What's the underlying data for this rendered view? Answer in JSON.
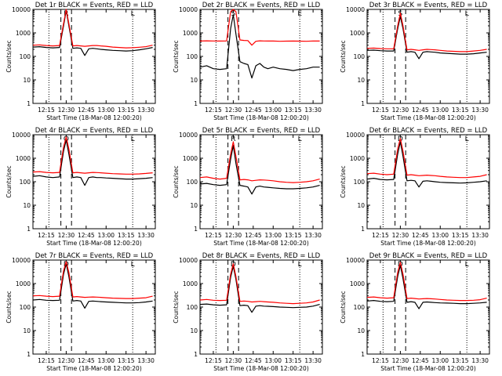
{
  "common": {
    "ylabel": "Counts/sec",
    "xlabel": "Start Time (18-Mar-08 12:00:20)",
    "xticks": [
      "12:15",
      "12:30",
      "12:45",
      "13:00",
      "13:15",
      "13:30"
    ],
    "yticks": [
      "1",
      "10",
      "100",
      "1000",
      "10000"
    ]
  },
  "colors": {
    "events": "#000000",
    "lld": "#ff0000",
    "axes": "#000000"
  },
  "chart_data": [
    {
      "type": "line",
      "title": "Det 1r BLACK = Events, RED = LLD",
      "scale": "log",
      "x": [
        "12:05",
        "12:10",
        "12:15",
        "12:20",
        "12:25",
        "12:28",
        "12:30",
        "12:32",
        "12:35",
        "12:38",
        "12:41",
        "12:44",
        "12:47",
        "12:50",
        "12:53",
        "12:56",
        "13:00",
        "13:05",
        "13:10",
        "13:15",
        "13:20",
        "13:25",
        "13:30",
        "13:35"
      ],
      "series": [
        {
          "name": "Events",
          "values": [
            250,
            260,
            240,
            230,
            240,
            2000,
            9000,
            2000,
            220,
            230,
            220,
            110,
            210,
            220,
            210,
            200,
            190,
            180,
            175,
            170,
            175,
            190,
            210,
            240
          ]
        },
        {
          "name": "LLD",
          "values": [
            300,
            310,
            290,
            280,
            290,
            2500,
            10000,
            2500,
            280,
            290,
            280,
            270,
            280,
            290,
            290,
            280,
            270,
            250,
            240,
            230,
            235,
            245,
            260,
            300
          ]
        }
      ],
      "ylim": [
        1,
        10000
      ],
      "letters": [
        "R",
        "L"
      ]
    },
    {
      "type": "line",
      "title": "Det 2r BLACK = Events, RED = LLD",
      "scale": "log",
      "x": [
        "12:05",
        "12:10",
        "12:15",
        "12:20",
        "12:25",
        "12:28",
        "12:30",
        "12:32",
        "12:35",
        "12:38",
        "12:41",
        "12:44",
        "12:47",
        "12:50",
        "12:53",
        "12:56",
        "13:00",
        "13:05",
        "13:10",
        "13:15",
        "13:20",
        "13:25",
        "13:30",
        "13:35"
      ],
      "series": [
        {
          "name": "Events",
          "values": [
            35,
            40,
            30,
            28,
            30,
            1500,
            6000,
            900,
            60,
            50,
            45,
            12,
            40,
            50,
            35,
            30,
            35,
            30,
            28,
            25,
            28,
            30,
            35,
            35
          ]
        },
        {
          "name": "LLD",
          "values": [
            450,
            460,
            455,
            450,
            455,
            8000,
            10000,
            8000,
            500,
            480,
            470,
            300,
            440,
            460,
            455,
            450,
            450,
            440,
            445,
            450,
            445,
            440,
            455,
            450
          ]
        }
      ],
      "ylim": [
        1,
        10000
      ],
      "letters": [
        "S",
        "E"
      ]
    },
    {
      "type": "line",
      "title": "Det 3r BLACK = Events, RED = LLD",
      "scale": "log",
      "x": [
        "12:05",
        "12:10",
        "12:15",
        "12:20",
        "12:25",
        "12:28",
        "12:30",
        "12:32",
        "12:35",
        "12:38",
        "12:41",
        "12:44",
        "12:47",
        "12:50",
        "12:53",
        "12:56",
        "13:00",
        "13:05",
        "13:10",
        "13:15",
        "13:20",
        "13:25",
        "13:30",
        "13:35"
      ],
      "series": [
        {
          "name": "Events",
          "values": [
            180,
            185,
            175,
            170,
            170,
            1500,
            5000,
            1500,
            150,
            160,
            150,
            80,
            150,
            160,
            155,
            150,
            140,
            135,
            130,
            125,
            125,
            130,
            140,
            150
          ]
        },
        {
          "name": "LLD",
          "values": [
            220,
            225,
            215,
            210,
            210,
            2000,
            7000,
            2000,
            190,
            200,
            190,
            180,
            190,
            200,
            195,
            190,
            180,
            170,
            165,
            160,
            160,
            170,
            180,
            200
          ]
        }
      ],
      "ylim": [
        1,
        10000
      ],
      "letters": [
        "S",
        "L"
      ]
    },
    {
      "type": "line",
      "title": "Det 4r BLACK = Events, RED = LLD",
      "scale": "log",
      "x": [
        "12:05",
        "12:10",
        "12:15",
        "12:20",
        "12:25",
        "12:28",
        "12:30",
        "12:32",
        "12:35",
        "12:38",
        "12:41",
        "12:44",
        "12:47",
        "12:50",
        "12:53",
        "12:56",
        "13:00",
        "13:05",
        "13:10",
        "13:15",
        "13:20",
        "13:25",
        "13:30",
        "13:35"
      ],
      "series": [
        {
          "name": "Events",
          "values": [
            170,
            180,
            160,
            150,
            160,
            2000,
            6000,
            1500,
            150,
            160,
            150,
            70,
            150,
            160,
            150,
            150,
            145,
            140,
            135,
            130,
            130,
            135,
            140,
            150
          ]
        },
        {
          "name": "LLD",
          "values": [
            260,
            270,
            250,
            240,
            250,
            3000,
            8000,
            2500,
            240,
            250,
            240,
            230,
            240,
            250,
            245,
            240,
            230,
            220,
            215,
            210,
            210,
            215,
            225,
            240
          ]
        }
      ],
      "ylim": [
        1,
        10000
      ],
      "letters": [
        "O",
        "L"
      ]
    },
    {
      "type": "line",
      "title": "Det 5r BLACK = Events, RED = LLD",
      "scale": "log",
      "x": [
        "12:05",
        "12:10",
        "12:15",
        "12:20",
        "12:25",
        "12:28",
        "12:30",
        "12:32",
        "12:35",
        "12:38",
        "12:41",
        "12:44",
        "12:47",
        "12:50",
        "12:53",
        "12:56",
        "13:00",
        "13:05",
        "13:10",
        "13:15",
        "13:20",
        "13:25",
        "13:30",
        "13:35"
      ],
      "series": [
        {
          "name": "Events",
          "values": [
            80,
            85,
            75,
            70,
            75,
            900,
            3500,
            600,
            70,
            65,
            60,
            30,
            60,
            65,
            60,
            58,
            55,
            52,
            50,
            50,
            52,
            55,
            60,
            70
          ]
        },
        {
          "name": "LLD",
          "values": [
            150,
            160,
            140,
            130,
            140,
            1500,
            5000,
            1200,
            120,
            125,
            120,
            110,
            115,
            120,
            118,
            115,
            110,
            100,
            95,
            92,
            95,
            100,
            110,
            130
          ]
        }
      ],
      "ylim": [
        1,
        10000
      ],
      "letters": [
        "R",
        "L"
      ]
    },
    {
      "type": "line",
      "title": "Det 6r BLACK = Events, RED = LLD",
      "scale": "log",
      "x": [
        "12:05",
        "12:10",
        "12:15",
        "12:20",
        "12:25",
        "12:28",
        "12:30",
        "12:32",
        "12:35",
        "12:38",
        "12:41",
        "12:44",
        "12:47",
        "12:50",
        "12:53",
        "12:56",
        "13:00",
        "13:05",
        "13:10",
        "13:15",
        "13:20",
        "13:25",
        "13:30",
        "13:35"
      ],
      "series": [
        {
          "name": "Events",
          "values": [
            130,
            140,
            125,
            120,
            125,
            1500,
            5000,
            1200,
            110,
            115,
            110,
            60,
            105,
            110,
            105,
            100,
            95,
            92,
            90,
            88,
            90,
            95,
            100,
            110
          ]
        },
        {
          "name": "LLD",
          "values": [
            220,
            230,
            210,
            200,
            210,
            2500,
            7000,
            2000,
            190,
            200,
            190,
            180,
            185,
            190,
            185,
            180,
            170,
            160,
            155,
            150,
            150,
            160,
            170,
            200
          ]
        }
      ],
      "ylim": [
        1,
        10000
      ],
      "letters": [
        "D",
        "L"
      ]
    },
    {
      "type": "line",
      "title": "Det 7r BLACK = Events, RED = LLD",
      "scale": "log",
      "x": [
        "12:05",
        "12:10",
        "12:15",
        "12:20",
        "12:25",
        "12:28",
        "12:30",
        "12:32",
        "12:35",
        "12:38",
        "12:41",
        "12:44",
        "12:47",
        "12:50",
        "12:53",
        "12:56",
        "13:00",
        "13:05",
        "13:10",
        "13:15",
        "13:20",
        "13:25",
        "13:30",
        "13:35"
      ],
      "series": [
        {
          "name": "Events",
          "values": [
            200,
            210,
            195,
            190,
            195,
            2500,
            7000,
            2000,
            180,
            190,
            180,
            90,
            175,
            180,
            175,
            170,
            165,
            160,
            155,
            150,
            150,
            155,
            165,
            180
          ]
        },
        {
          "name": "LLD",
          "values": [
            300,
            310,
            290,
            280,
            290,
            3500,
            8500,
            3000,
            270,
            280,
            270,
            260,
            265,
            270,
            265,
            260,
            250,
            240,
            235,
            230,
            230,
            240,
            250,
            290
          ]
        }
      ],
      "ylim": [
        1,
        10000
      ],
      "letters": [
        "D",
        "L"
      ]
    },
    {
      "type": "line",
      "title": "Det 8r BLACK = Events, RED = LLD",
      "scale": "log",
      "x": [
        "12:05",
        "12:10",
        "12:15",
        "12:20",
        "12:25",
        "12:28",
        "12:30",
        "12:32",
        "12:35",
        "12:38",
        "12:41",
        "12:44",
        "12:47",
        "12:50",
        "12:53",
        "12:56",
        "13:00",
        "13:05",
        "13:10",
        "13:15",
        "13:20",
        "13:25",
        "13:30",
        "13:35"
      ],
      "series": [
        {
          "name": "Events",
          "values": [
            130,
            135,
            125,
            120,
            125,
            1800,
            5500,
            1500,
            115,
            120,
            115,
            60,
            110,
            115,
            110,
            108,
            105,
            100,
            98,
            95,
            98,
            100,
            110,
            130
          ]
        },
        {
          "name": "LLD",
          "values": [
            200,
            210,
            195,
            190,
            195,
            2500,
            7000,
            2000,
            175,
            180,
            175,
            165,
            170,
            175,
            170,
            165,
            160,
            150,
            145,
            140,
            145,
            150,
            165,
            200
          ]
        }
      ],
      "ylim": [
        1,
        10000
      ],
      "letters": [
        "D",
        "L"
      ]
    },
    {
      "type": "line",
      "title": "Det 9r BLACK = Events, RED = LLD",
      "scale": "log",
      "x": [
        "12:05",
        "12:10",
        "12:15",
        "12:20",
        "12:25",
        "12:28",
        "12:30",
        "12:32",
        "12:35",
        "12:38",
        "12:41",
        "12:44",
        "12:47",
        "12:50",
        "12:53",
        "12:56",
        "13:00",
        "13:05",
        "13:10",
        "13:15",
        "13:20",
        "13:25",
        "13:30",
        "13:35"
      ],
      "series": [
        {
          "name": "Events",
          "values": [
            180,
            190,
            175,
            170,
            175,
            2000,
            6000,
            1600,
            160,
            170,
            160,
            85,
            160,
            165,
            160,
            155,
            150,
            148,
            145,
            140,
            140,
            145,
            150,
            160
          ]
        },
        {
          "name": "LLD",
          "values": [
            260,
            270,
            250,
            240,
            250,
            3000,
            8000,
            2500,
            230,
            240,
            230,
            220,
            225,
            230,
            225,
            220,
            210,
            200,
            195,
            190,
            190,
            195,
            205,
            240
          ]
        }
      ],
      "ylim": [
        1,
        10000
      ],
      "letters": [
        "D",
        "L"
      ]
    }
  ]
}
